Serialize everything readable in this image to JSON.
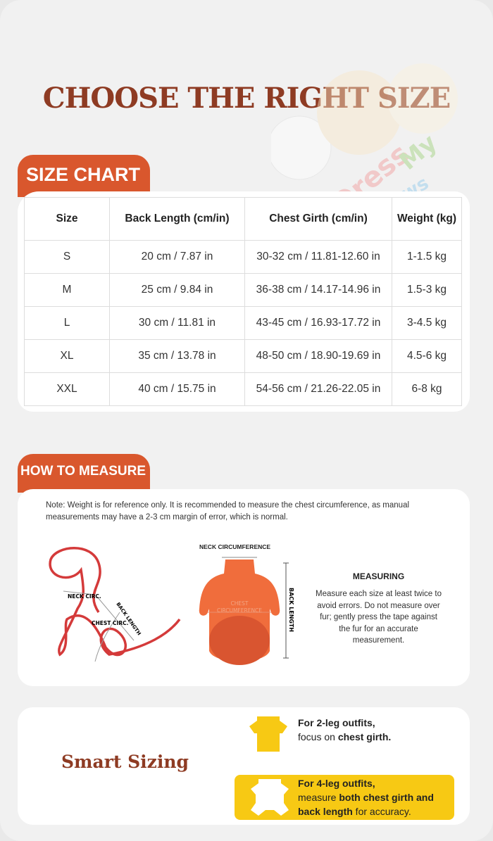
{
  "title": "CHOOSE THE RIGHT SIZE",
  "logo": {
    "text": "Dress My Paws"
  },
  "size_chart": {
    "tab_label": "SIZE CHART",
    "headers": [
      "Size",
      "Back Length (cm/in)",
      "Chest Girth (cm/in)",
      "Weight (kg)"
    ],
    "rows": [
      [
        "S",
        "20 cm / 7.87 in",
        "30-32 cm / 11.81-12.60 in",
        "1-1.5 kg"
      ],
      [
        "M",
        "25 cm / 9.84 in",
        "36-38 cm / 14.17-14.96 in",
        "1.5-3 kg"
      ],
      [
        "L",
        "30 cm / 11.81 in",
        "43-45 cm / 16.93-17.72 in",
        "3-4.5 kg"
      ],
      [
        "XL",
        "35 cm / 13.78 in",
        "48-50 cm / 18.90-19.69 in",
        "4.5-6 kg"
      ],
      [
        "XXL",
        "40 cm / 15.75 in",
        "54-56 cm / 21.26-22.05 in",
        "6-8 kg"
      ]
    ]
  },
  "how_to_measure": {
    "tab_label": "HOW TO MEASURE",
    "note": "Note: Weight is for reference only. It is recommended to measure the chest circumference, as manual measurements may have a 2-3 cm margin of error, which is normal.",
    "dog_labels": {
      "neck": "NECK CIRC.",
      "back": "BACK LENGTH",
      "chest": "CHEST CIRC."
    },
    "shirt_labels": {
      "neck": "NECK CIRCUMFERENCE",
      "chest1": "CHEST",
      "chest2": "CIRCUMFERENCE",
      "back": "BACK LENGTH"
    },
    "measuring_heading": "MEASURING",
    "measuring_text": "Measure each size at least twice to avoid errors. Do not measure over fur; gently press the tape against the fur for an accurate measurement."
  },
  "smart_sizing": {
    "title": "Smart Sizing",
    "two_leg": {
      "line1": "For 2-leg outfits,",
      "pre": "focus on ",
      "bold": "chest girth."
    },
    "four_leg": {
      "line1": "For 4-leg outfits,",
      "pre": "measure ",
      "bold1": "both chest girth and",
      "bold2": "back length",
      "post": " for accuracy."
    },
    "accent_color": "#f7c914"
  },
  "colors": {
    "brand": "#d9572d",
    "title": "#8e3b23"
  }
}
